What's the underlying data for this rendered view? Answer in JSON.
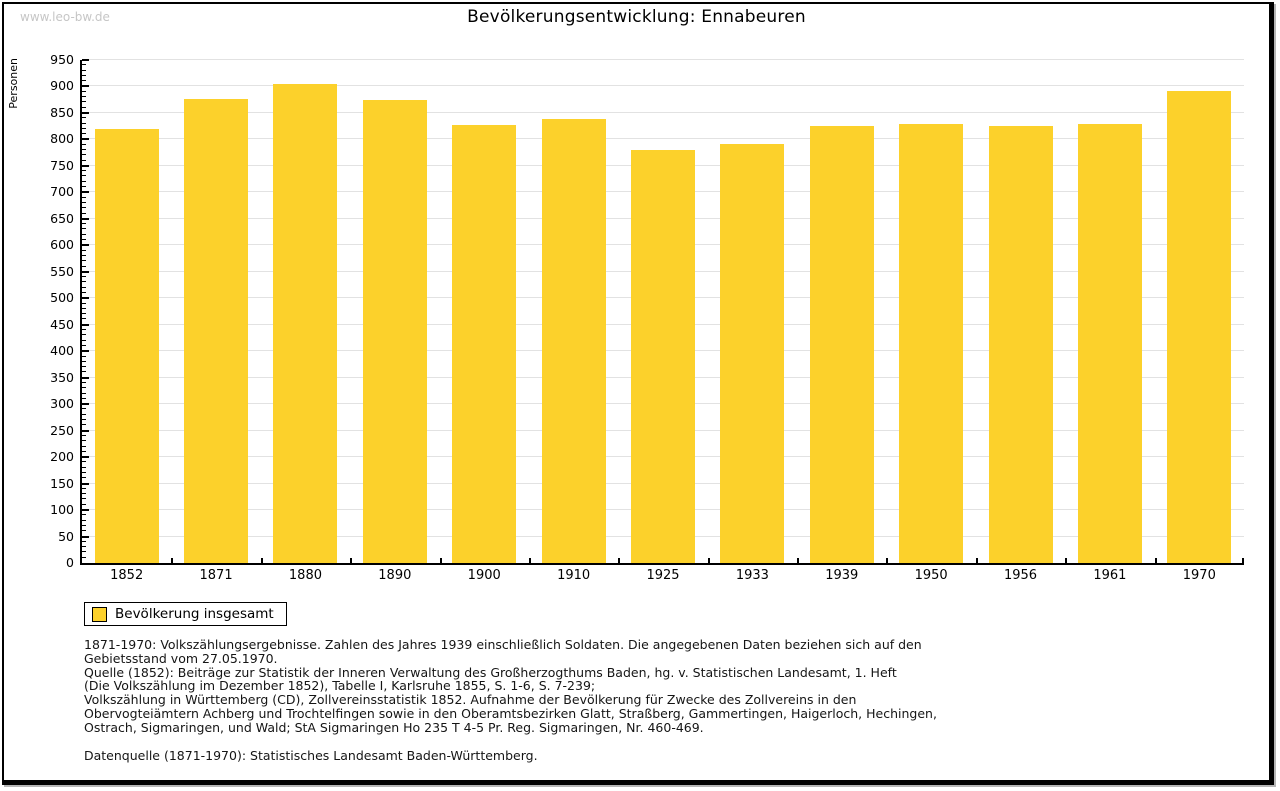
{
  "page": {
    "watermark": "www.leo-bw.de",
    "title": "Bevölkerungsentwicklung: Ennabeuren"
  },
  "chart_data": {
    "type": "bar",
    "title": "Bevölkerungsentwicklung: Ennabeuren",
    "xlabel": "",
    "ylabel": "Personen",
    "categories": [
      "1852",
      "1871",
      "1880",
      "1890",
      "1900",
      "1910",
      "1925",
      "1933",
      "1939",
      "1950",
      "1956",
      "1961",
      "1970"
    ],
    "values": [
      820,
      876,
      905,
      874,
      827,
      838,
      780,
      792,
      826,
      829,
      826,
      830,
      892
    ],
    "series_name": "Bevölkerung insgesamt",
    "bar_color": "#FCD12B",
    "ylim": [
      0,
      950
    ],
    "ytick_major": 50,
    "ytick_minor": 10,
    "grid": "horizontal-major",
    "legend_position": "bottom-left"
  },
  "legend": {
    "label": "Bevölkerung insgesamt",
    "swatch_color": "#FCD12B"
  },
  "footer": {
    "paragraphs": [
      [
        "1871-1970: Volkszählungsergebnisse. Zahlen des Jahres 1939 einschließlich Soldaten. Die angegebenen Daten beziehen sich auf den",
        "Gebietsstand vom 27.05.1970.",
        "Quelle (1852): Beiträge zur Statistik der Inneren Verwaltung des Großherzogthums Baden, hg. v. Statistischen Landesamt, 1. Heft",
        "(Die Volkszählung im Dezember 1852), Tabelle I, Karlsruhe 1855, S. 1-6, S. 7-239;",
        "Volkszählung in Württemberg (CD), Zollvereinsstatistik 1852. Aufnahme der Bevölkerung für Zwecke des Zollvereins in den",
        "Obervogteiämtern Achberg und Trochtelfingen sowie in den Oberamtsbezirken Glatt, Straßberg, Gammertingen, Haigerloch, Hechingen,",
        "Ostrach, Sigmaringen, und Wald; StA Sigmaringen Ho 235 T 4-5 Pr. Reg. Sigmaringen, Nr. 460-469."
      ],
      [
        "Datenquelle (1871-1970): Statistisches Landesamt Baden-Württemberg."
      ]
    ]
  }
}
